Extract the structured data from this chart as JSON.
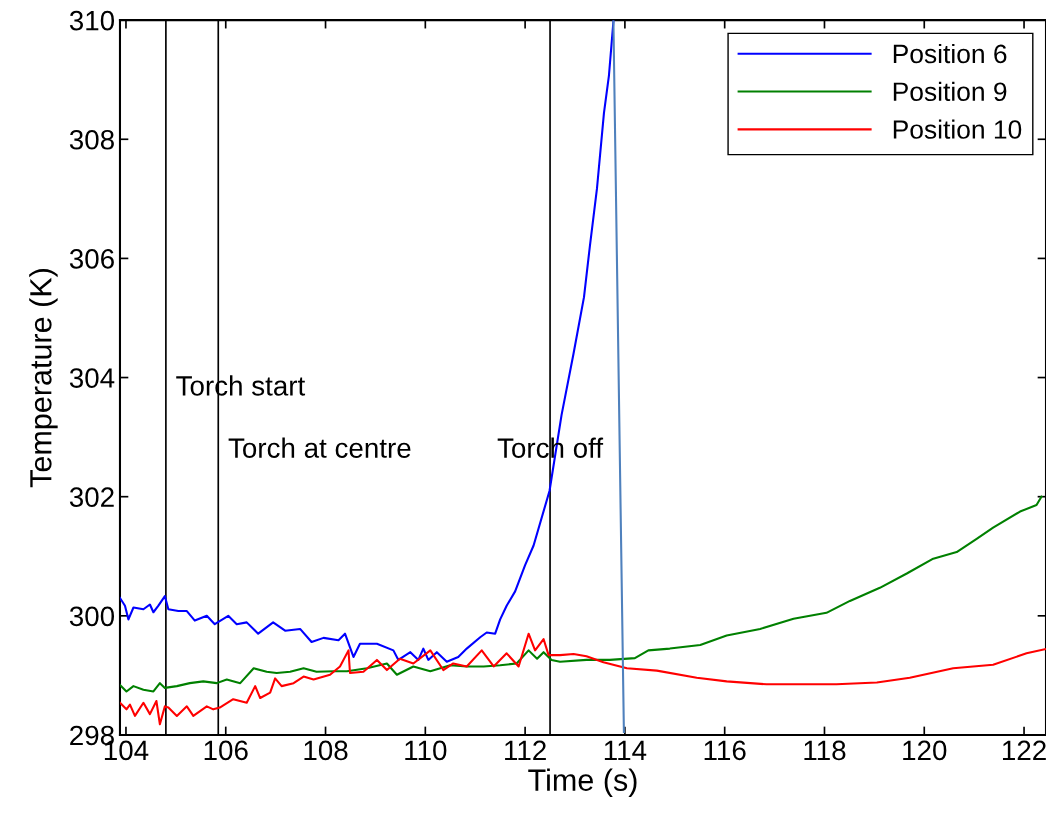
{
  "chart_data": {
    "type": "line",
    "xlabel": "Time (s)",
    "ylabel": "Temperature (K)",
    "xlim": [
      103.88,
      122.44
    ],
    "ylim": [
      298,
      310
    ],
    "xticks": [
      104,
      106,
      108,
      110,
      112,
      114,
      116,
      118,
      120,
      122
    ],
    "yticks": [
      298,
      300,
      302,
      304,
      306,
      308,
      310
    ],
    "grid": false,
    "legend": "top right",
    "marker": "none",
    "line_style": "solid",
    "series": [
      {
        "name": "Position 6",
        "color": "#0000ff",
        "x": [
          103.88,
          103.98,
          104.05,
          104.15,
          104.35,
          104.48,
          104.55,
          104.65,
          104.78,
          104.85,
          105.05,
          105.22,
          105.38,
          105.62,
          105.78,
          106.05,
          106.22,
          106.42,
          106.65,
          106.95,
          107.19,
          107.49,
          107.72,
          107.96,
          108.26,
          108.39,
          108.56,
          108.69,
          109.03,
          109.36,
          109.46,
          109.7,
          109.86,
          109.96,
          110.06,
          110.23,
          110.43,
          110.66,
          110.83,
          111.1,
          111.23,
          111.4,
          111.5,
          111.63,
          111.8,
          112.0,
          112.17,
          112.49,
          112.73,
          112.97,
          113.18,
          113.3,
          113.44,
          113.58,
          113.68,
          113.77
        ],
        "values": [
          300.3,
          300.17,
          299.94,
          300.14,
          300.11,
          300.19,
          300.06,
          300.17,
          300.33,
          300.11,
          300.08,
          300.08,
          299.92,
          300.0,
          299.86,
          300.0,
          299.86,
          299.89,
          299.7,
          299.89,
          299.75,
          299.78,
          299.56,
          299.63,
          299.59,
          299.7,
          299.31,
          299.53,
          299.53,
          299.42,
          299.26,
          299.39,
          299.26,
          299.45,
          299.26,
          299.39,
          299.23,
          299.31,
          299.45,
          299.64,
          299.72,
          299.7,
          299.94,
          300.17,
          300.41,
          300.85,
          301.18,
          302.1,
          303.37,
          304.4,
          305.35,
          306.22,
          307.17,
          308.44,
          309.07,
          309.98
        ]
      },
      {
        "name": "Position 9",
        "color": "#008000",
        "x": [
          103.88,
          104.01,
          104.15,
          104.35,
          104.55,
          104.68,
          104.78,
          105.02,
          105.28,
          105.55,
          105.82,
          106.02,
          106.29,
          106.56,
          106.82,
          107.02,
          107.29,
          107.56,
          107.82,
          108.16,
          108.43,
          108.83,
          109.23,
          109.43,
          109.76,
          110.1,
          110.5,
          110.83,
          111.17,
          111.5,
          111.83,
          112.07,
          112.24,
          112.37,
          112.53,
          112.7,
          113.23,
          113.7,
          114.2,
          114.47,
          114.9,
          115.51,
          116.04,
          116.71,
          117.38,
          118.04,
          118.51,
          119.11,
          119.65,
          120.18,
          120.65,
          121.05,
          121.38,
          121.92,
          122.25,
          122.35
        ],
        "values": [
          298.84,
          298.73,
          298.82,
          298.76,
          298.73,
          298.87,
          298.79,
          298.82,
          298.87,
          298.9,
          298.87,
          298.93,
          298.87,
          299.12,
          299.06,
          299.04,
          299.06,
          299.12,
          299.06,
          299.07,
          299.07,
          299.12,
          299.2,
          299.01,
          299.15,
          299.07,
          299.17,
          299.15,
          299.15,
          299.17,
          299.2,
          299.42,
          299.28,
          299.39,
          299.26,
          299.23,
          299.26,
          299.26,
          299.29,
          299.42,
          299.45,
          299.51,
          299.67,
          299.78,
          299.95,
          300.05,
          300.25,
          300.47,
          300.71,
          300.96,
          301.07,
          301.29,
          301.48,
          301.75,
          301.86,
          302.0
        ]
      },
      {
        "name": "Position 10",
        "color": "#ff0000",
        "x": [
          103.88,
          104.01,
          104.08,
          104.18,
          104.35,
          104.48,
          104.61,
          104.68,
          104.78,
          104.85,
          105.02,
          105.22,
          105.35,
          105.62,
          105.75,
          105.88,
          106.15,
          106.42,
          106.59,
          106.69,
          106.89,
          106.99,
          107.12,
          107.36,
          107.56,
          107.76,
          108.09,
          108.29,
          108.46,
          108.49,
          108.76,
          109.03,
          109.23,
          109.49,
          109.76,
          110.1,
          110.36,
          110.56,
          110.83,
          111.13,
          111.37,
          111.63,
          111.87,
          112.07,
          112.2,
          112.37,
          112.47,
          112.7,
          112.97,
          113.23,
          113.57,
          114.04,
          114.64,
          115.44,
          116.04,
          116.84,
          118.24,
          119.05,
          119.71,
          120.58,
          121.38,
          122.05,
          122.42
        ],
        "values": [
          298.54,
          298.43,
          298.51,
          298.32,
          298.54,
          298.35,
          298.57,
          298.18,
          298.48,
          298.46,
          298.32,
          298.48,
          298.32,
          298.48,
          298.43,
          298.46,
          298.6,
          298.54,
          298.82,
          298.62,
          298.71,
          298.95,
          298.82,
          298.87,
          298.98,
          298.93,
          299.01,
          299.15,
          299.42,
          299.04,
          299.06,
          299.26,
          299.09,
          299.28,
          299.2,
          299.42,
          299.09,
          299.2,
          299.15,
          299.42,
          299.15,
          299.37,
          299.15,
          299.7,
          299.42,
          299.61,
          299.34,
          299.34,
          299.36,
          299.32,
          299.22,
          299.12,
          299.08,
          298.96,
          298.9,
          298.85,
          298.85,
          298.88,
          298.96,
          299.12,
          299.18,
          299.37,
          299.44
        ]
      },
      {
        "color": "#4f81bd",
        "x": [
          113.77,
          113.98
        ],
        "values": [
          309.98,
          298.05
        ]
      }
    ],
    "ref_lines": [
      {
        "axis": "x",
        "value": 104.8,
        "color": "#000000",
        "label": "Torch start"
      },
      {
        "axis": "x",
        "value": 105.85,
        "color": "#000000",
        "label": "Torch at centre"
      },
      {
        "axis": "x",
        "value": 112.5,
        "color": "#000000",
        "label": "Torch off"
      }
    ]
  }
}
